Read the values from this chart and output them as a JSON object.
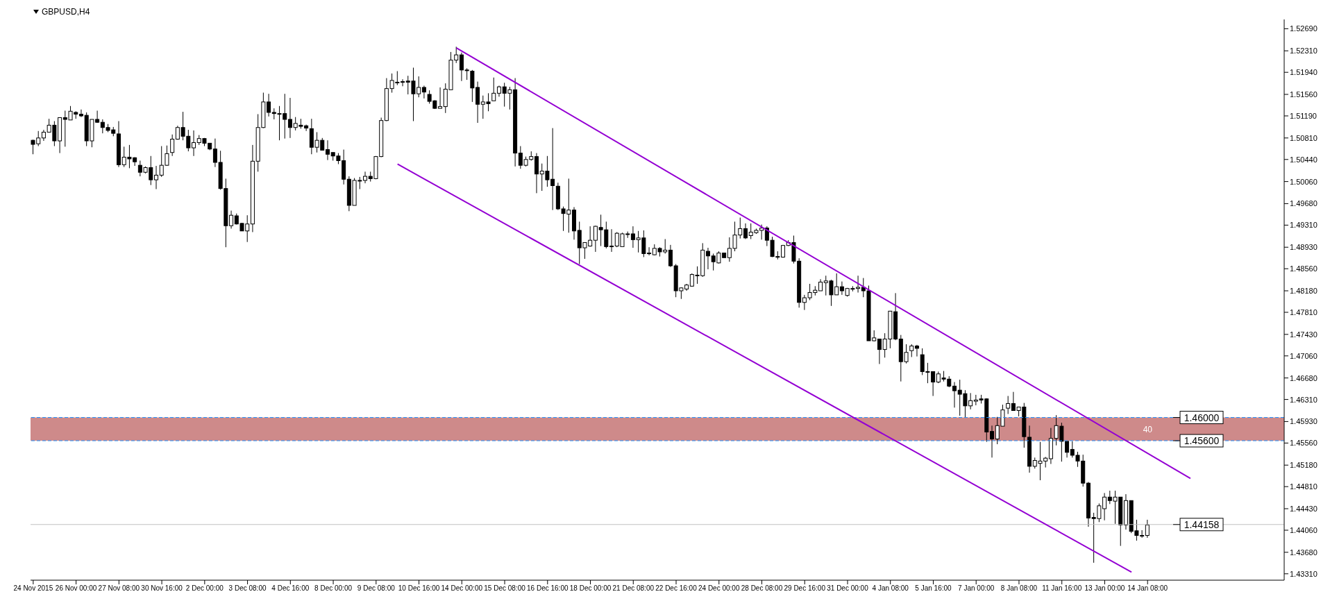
{
  "chart_data": {
    "type": "candlestick",
    "title": "GBPUSD,H4",
    "categories": [
      "24 Nov 2015",
      null,
      null,
      null,
      null,
      null,
      null,
      null,
      "26 Nov 00:00",
      null,
      null,
      null,
      null,
      null,
      null,
      null,
      "27 Nov 08:00",
      null,
      null,
      null,
      null,
      null,
      null,
      null,
      "30 Nov 16:00",
      null,
      null,
      null,
      null,
      null,
      null,
      null,
      "2 Dec 00:00",
      null,
      null,
      null,
      null,
      null,
      null,
      null,
      "3 Dec 08:00",
      null,
      null,
      null,
      null,
      null,
      null,
      null,
      "4 Dec 16:00",
      null,
      null,
      null,
      null,
      null,
      null,
      null,
      "8 Dec 00:00",
      null,
      null,
      null,
      null,
      null,
      null,
      null,
      "9 Dec 08:00",
      null,
      null,
      null,
      null,
      null,
      null,
      null,
      "10 Dec 16:00",
      null,
      null,
      null,
      null,
      null,
      null,
      null,
      "14 Dec 00:00",
      null,
      null,
      null,
      null,
      null,
      null,
      null,
      "15 Dec 08:00",
      null,
      null,
      null,
      null,
      null,
      null,
      null,
      "16 Dec 16:00",
      null,
      null,
      null,
      null,
      null,
      null,
      null,
      "18 Dec 00:00",
      null,
      null,
      null,
      null,
      null,
      null,
      null,
      "21 Dec 08:00",
      null,
      null,
      null,
      null,
      null,
      null,
      null,
      "22 Dec 16:00",
      null,
      null,
      null,
      null,
      null,
      null,
      null,
      "24 Dec 00:00",
      null,
      null,
      null,
      null,
      null,
      null,
      null,
      "28 Dec 08:00",
      null,
      null,
      null,
      null,
      null,
      null,
      null,
      "29 Dec 16:00",
      null,
      null,
      null,
      null,
      null,
      null,
      null,
      "31 Dec 00:00",
      null,
      null,
      null,
      null,
      null,
      null,
      null,
      "4 Jan 08:00",
      null,
      null,
      null,
      null,
      null,
      null,
      null,
      "5 Jan 16:00",
      null,
      null,
      null,
      null,
      null,
      null,
      null,
      "7 Jan 00:00",
      null,
      null,
      null,
      null,
      null,
      null,
      null,
      "8 Jan 08:00",
      null,
      null,
      null,
      null,
      null,
      null,
      null,
      "11 Jan 16:00",
      null,
      null,
      null,
      null,
      null,
      null,
      null,
      "13 Jan 00:00",
      null,
      null,
      null,
      null,
      null,
      null,
      null,
      "14 Jan 08:00",
      null,
      null,
      null,
      null,
      null,
      null,
      null,
      null,
      null,
      null,
      null,
      null,
      null,
      null,
      null,
      null,
      null,
      null,
      null,
      null,
      null,
      null,
      null,
      null,
      null
    ],
    "ohlc": [
      [
        1.5077,
        1.5078,
        1.5053,
        1.507
      ],
      [
        1.5071,
        1.5093,
        1.5067,
        1.5081
      ],
      [
        1.5081,
        1.5095,
        1.5076,
        1.5091
      ],
      [
        1.5091,
        1.5114,
        1.5091,
        1.5103
      ],
      [
        1.5103,
        1.511,
        1.5067,
        1.5076
      ],
      [
        1.5076,
        1.5116,
        1.5055,
        1.5116
      ],
      [
        1.5116,
        1.5128,
        1.5066,
        1.5113
      ],
      [
        1.5112,
        1.5136,
        1.5112,
        1.5127
      ],
      [
        1.5125,
        1.5127,
        1.5114,
        1.5122
      ],
      [
        1.5122,
        1.513,
        1.5117,
        1.5119
      ],
      [
        1.512,
        1.5125,
        1.5067,
        1.5076
      ],
      [
        1.5076,
        1.5113,
        1.5065,
        1.5113
      ],
      [
        1.5113,
        1.5128,
        1.5107,
        1.5108
      ],
      [
        1.5108,
        1.5113,
        1.5089,
        1.5099
      ],
      [
        1.5099,
        1.5105,
        1.5091,
        1.5094
      ],
      [
        1.5095,
        1.51,
        1.5084,
        1.5089
      ],
      [
        1.5088,
        1.511,
        1.5031,
        1.5035
      ],
      [
        1.5035,
        1.5066,
        1.5031,
        1.5048
      ],
      [
        1.5048,
        1.5069,
        1.5029,
        1.5045
      ],
      [
        1.5047,
        1.5048,
        1.5033,
        1.504
      ],
      [
        1.5034,
        1.5042,
        1.5015,
        1.5022
      ],
      [
        1.5022,
        1.5032,
        1.502,
        1.503
      ],
      [
        1.503,
        1.505,
        1.5,
        1.5009
      ],
      [
        1.5009,
        1.5033,
        1.4993,
        1.5017
      ],
      [
        1.5017,
        1.5067,
        1.5014,
        1.5034
      ],
      [
        1.5034,
        1.5068,
        1.5033,
        1.5054
      ],
      [
        1.5056,
        1.5087,
        1.505,
        1.5079
      ],
      [
        1.5079,
        1.5102,
        1.5078,
        1.5099
      ],
      [
        1.5099,
        1.5126,
        1.5077,
        1.5084
      ],
      [
        1.5084,
        1.5095,
        1.5058,
        1.5064
      ],
      [
        1.5064,
        1.5094,
        1.505,
        1.5073
      ],
      [
        1.5073,
        1.5086,
        1.5069,
        1.508
      ],
      [
        1.508,
        1.5081,
        1.5067,
        1.5072
      ],
      [
        1.5072,
        1.5072,
        1.506,
        1.5062
      ],
      [
        1.5062,
        1.508,
        1.5031,
        1.5039
      ],
      [
        1.5039,
        1.5059,
        1.4992,
        1.4994
      ],
      [
        1.4994,
        1.5011,
        1.4893,
        1.493
      ],
      [
        1.493,
        1.4956,
        1.4925,
        1.4948
      ],
      [
        1.4947,
        1.4951,
        1.4932,
        1.4933
      ],
      [
        1.4934,
        1.4935,
        1.4921,
        1.4921
      ],
      [
        1.4921,
        1.4948,
        1.4902,
        1.4933
      ],
      [
        1.4933,
        1.5069,
        1.4919,
        1.5041
      ],
      [
        1.5041,
        1.5122,
        1.5023,
        1.5099
      ],
      [
        1.5099,
        1.5159,
        1.5098,
        1.5143
      ],
      [
        1.5143,
        1.5157,
        1.5118,
        1.5125
      ],
      [
        1.5125,
        1.5132,
        1.5113,
        1.5123
      ],
      [
        1.5123,
        1.5136,
        1.5077,
        1.5123
      ],
      [
        1.5123,
        1.5157,
        1.508,
        1.5113
      ],
      [
        1.5113,
        1.515,
        1.5081,
        1.5099
      ],
      [
        1.5099,
        1.5117,
        1.5094,
        1.5106
      ],
      [
        1.5103,
        1.5114,
        1.5097,
        1.5101
      ],
      [
        1.5102,
        1.5104,
        1.5093,
        1.5098
      ],
      [
        1.5097,
        1.5114,
        1.5053,
        1.5065
      ],
      [
        1.5065,
        1.5091,
        1.5056,
        1.5077
      ],
      [
        1.5077,
        1.5081,
        1.506,
        1.506
      ],
      [
        1.5061,
        1.5077,
        1.5043,
        1.5053
      ],
      [
        1.5056,
        1.5056,
        1.5042,
        1.505
      ],
      [
        1.505,
        1.5055,
        1.5036,
        1.5042
      ],
      [
        1.5042,
        1.5061,
        1.5001,
        1.501
      ],
      [
        1.501,
        1.5015,
        1.4955,
        1.4965
      ],
      [
        1.4965,
        1.5012,
        1.4965,
        1.5008
      ],
      [
        1.5008,
        1.5014,
        1.4993,
        1.5008
      ],
      [
        1.5008,
        1.5023,
        1.5003,
        1.5015
      ],
      [
        1.5015,
        1.5023,
        1.5006,
        1.5011
      ],
      [
        1.5011,
        1.505,
        1.501,
        1.5049
      ],
      [
        1.5049,
        1.5116,
        1.5048,
        1.5111
      ],
      [
        1.5111,
        1.5184,
        1.511,
        1.5166
      ],
      [
        1.5166,
        1.5192,
        1.5159,
        1.518
      ],
      [
        1.5177,
        1.5196,
        1.5172,
        1.5177
      ],
      [
        1.5178,
        1.5182,
        1.517,
        1.5177
      ],
      [
        1.5179,
        1.5188,
        1.5156,
        1.5177
      ],
      [
        1.5179,
        1.5202,
        1.511,
        1.5157
      ],
      [
        1.5157,
        1.5187,
        1.5151,
        1.5168
      ],
      [
        1.5168,
        1.5171,
        1.5149,
        1.516
      ],
      [
        1.5156,
        1.5163,
        1.514,
        1.5144
      ],
      [
        1.5145,
        1.5146,
        1.5131,
        1.5132
      ],
      [
        1.5132,
        1.5168,
        1.5132,
        1.5135
      ],
      [
        1.5135,
        1.5175,
        1.5124,
        1.5165
      ],
      [
        1.5164,
        1.5229,
        1.5164,
        1.5215
      ],
      [
        1.5215,
        1.5238,
        1.521,
        1.5224
      ],
      [
        1.5224,
        1.5228,
        1.5179,
        1.5198
      ],
      [
        1.5198,
        1.5201,
        1.5181,
        1.5197
      ],
      [
        1.5196,
        1.5198,
        1.5143,
        1.5167
      ],
      [
        1.5168,
        1.5178,
        1.5107,
        1.5139
      ],
      [
        1.5139,
        1.5154,
        1.5114,
        1.5143
      ],
      [
        1.5143,
        1.5158,
        1.5127,
        1.514
      ],
      [
        1.5145,
        1.5185,
        1.5145,
        1.5158
      ],
      [
        1.5158,
        1.5171,
        1.5152,
        1.5169
      ],
      [
        1.5169,
        1.5176,
        1.5135,
        1.5158
      ],
      [
        1.5158,
        1.5169,
        1.513,
        1.5164
      ],
      [
        1.5164,
        1.5184,
        1.5032,
        1.5055
      ],
      [
        1.5055,
        1.5067,
        1.5028,
        1.5034
      ],
      [
        1.5034,
        1.5049,
        1.5032,
        1.5044
      ],
      [
        1.5044,
        1.5058,
        1.5042,
        1.5049
      ],
      [
        1.5049,
        1.5055,
        1.4986,
        1.5019
      ],
      [
        1.5019,
        1.5037,
        1.499,
        1.5024
      ],
      [
        1.5024,
        1.505,
        1.4997,
        1.5009
      ],
      [
        1.501,
        1.5098,
        1.4957,
        1.4999
      ],
      [
        1.4998,
        1.5004,
        1.4957,
        1.4959
      ],
      [
        1.4959,
        1.4963,
        1.4921,
        1.4951
      ],
      [
        1.495,
        1.5011,
        1.4918,
        1.4957
      ],
      [
        1.4957,
        1.4962,
        1.4906,
        1.4921
      ],
      [
        1.4922,
        1.4937,
        1.4864,
        1.4892
      ],
      [
        1.4892,
        1.4901,
        1.4873,
        1.4901
      ],
      [
        1.4895,
        1.4929,
        1.4894,
        1.4905
      ],
      [
        1.4905,
        1.493,
        1.4885,
        1.4929
      ],
      [
        1.4927,
        1.4949,
        1.4895,
        1.4923
      ],
      [
        1.4923,
        1.4937,
        1.4891,
        1.4894
      ],
      [
        1.4895,
        1.4924,
        1.4885,
        1.4894
      ],
      [
        1.4895,
        1.4919,
        1.4893,
        1.4917
      ],
      [
        1.4894,
        1.4918,
        1.4894,
        1.4916
      ],
      [
        1.4916,
        1.492,
        1.4909,
        1.4916
      ],
      [
        1.4916,
        1.4929,
        1.4892,
        1.4906
      ],
      [
        1.4906,
        1.4921,
        1.4884,
        1.4909
      ],
      [
        1.4909,
        1.4922,
        1.4876,
        1.4882
      ],
      [
        1.4883,
        1.4893,
        1.4879,
        1.4883
      ],
      [
        1.488,
        1.4898,
        1.4879,
        1.4891
      ],
      [
        1.4891,
        1.4893,
        1.4877,
        1.4885
      ],
      [
        1.4885,
        1.4907,
        1.4882,
        1.4888
      ],
      [
        1.4888,
        1.4897,
        1.4859,
        1.4861
      ],
      [
        1.4861,
        1.4864,
        1.4807,
        1.4818
      ],
      [
        1.4818,
        1.4824,
        1.4804,
        1.4823
      ],
      [
        1.4821,
        1.483,
        1.4818,
        1.4828
      ],
      [
        1.4826,
        1.4848,
        1.4825,
        1.4846
      ],
      [
        1.4845,
        1.486,
        1.483,
        1.4844
      ],
      [
        1.4844,
        1.49,
        1.4842,
        1.4888
      ],
      [
        1.4886,
        1.4892,
        1.4855,
        1.4878
      ],
      [
        1.4878,
        1.4882,
        1.4853,
        1.4868
      ],
      [
        1.4866,
        1.4886,
        1.4865,
        1.4883
      ],
      [
        1.4883,
        1.4883,
        1.4875,
        1.4875
      ],
      [
        1.4875,
        1.491,
        1.4868,
        1.4891
      ],
      [
        1.4891,
        1.4937,
        1.4886,
        1.4914
      ],
      [
        1.4914,
        1.4944,
        1.4908,
        1.4925
      ],
      [
        1.4925,
        1.4934,
        1.4907,
        1.4909
      ],
      [
        1.4913,
        1.4934,
        1.4907,
        1.4919
      ],
      [
        1.4918,
        1.4925,
        1.4916,
        1.4922
      ],
      [
        1.4922,
        1.4932,
        1.4906,
        1.4926
      ],
      [
        1.4926,
        1.4929,
        1.4895,
        1.4905
      ],
      [
        1.4905,
        1.4911,
        1.4876,
        1.4877
      ],
      [
        1.4877,
        1.4886,
        1.4872,
        1.4877
      ],
      [
        1.4876,
        1.4897,
        1.4875,
        1.4896
      ],
      [
        1.4896,
        1.4905,
        1.4895,
        1.4901
      ],
      [
        1.4901,
        1.4913,
        1.4865,
        1.4869
      ],
      [
        1.4869,
        1.4874,
        1.4789,
        1.4798
      ],
      [
        1.4798,
        1.4811,
        1.4785,
        1.4806
      ],
      [
        1.4806,
        1.483,
        1.4802,
        1.4815
      ],
      [
        1.4815,
        1.4826,
        1.481,
        1.4819
      ],
      [
        1.4818,
        1.4838,
        1.4818,
        1.4833
      ],
      [
        1.4832,
        1.4844,
        1.481,
        1.4835
      ],
      [
        1.4835,
        1.4837,
        1.4792,
        1.4811
      ],
      [
        1.4811,
        1.4848,
        1.4811,
        1.4825
      ],
      [
        1.4825,
        1.4834,
        1.4811,
        1.4818
      ],
      [
        1.481,
        1.4823,
        1.4808,
        1.4822
      ],
      [
        1.4822,
        1.4826,
        1.4817,
        1.4822
      ],
      [
        1.4822,
        1.4844,
        1.4815,
        1.4824
      ],
      [
        1.4824,
        1.484,
        1.4807,
        1.4818
      ],
      [
        1.4818,
        1.4827,
        1.4732,
        1.4732
      ],
      [
        1.4732,
        1.475,
        1.4731,
        1.4737
      ],
      [
        1.4735,
        1.4735,
        1.4692,
        1.4717
      ],
      [
        1.4717,
        1.4745,
        1.4703,
        1.4735
      ],
      [
        1.4735,
        1.4783,
        1.4719,
        1.4783
      ],
      [
        1.4782,
        1.4814,
        1.4733,
        1.4735
      ],
      [
        1.4735,
        1.4742,
        1.4662,
        1.4696
      ],
      [
        1.4696,
        1.4726,
        1.4693,
        1.4712
      ],
      [
        1.4715,
        1.4726,
        1.4704,
        1.4723
      ],
      [
        1.4723,
        1.4725,
        1.4705,
        1.4719
      ],
      [
        1.4708,
        1.4719,
        1.4673,
        1.4679
      ],
      [
        1.4679,
        1.4694,
        1.4659,
        1.4678
      ],
      [
        1.4679,
        1.4679,
        1.4637,
        1.4661
      ],
      [
        1.4661,
        1.4679,
        1.4659,
        1.4675
      ],
      [
        1.4668,
        1.468,
        1.4662,
        1.4666
      ],
      [
        1.4666,
        1.4671,
        1.4652,
        1.4654
      ],
      [
        1.4654,
        1.4661,
        1.4617,
        1.4646
      ],
      [
        1.4647,
        1.4665,
        1.4603,
        1.464
      ],
      [
        1.4641,
        1.4647,
        1.46,
        1.462
      ],
      [
        1.462,
        1.4642,
        1.4614,
        1.4629
      ],
      [
        1.4628,
        1.4639,
        1.4621,
        1.463
      ],
      [
        1.4632,
        1.4639,
        1.4624,
        1.463
      ],
      [
        1.4632,
        1.4633,
        1.4558,
        1.4575
      ],
      [
        1.4576,
        1.4586,
        1.4531,
        1.4563
      ],
      [
        1.4563,
        1.4601,
        1.4554,
        1.4586
      ],
      [
        1.4585,
        1.4622,
        1.4585,
        1.4613
      ],
      [
        1.4616,
        1.4637,
        1.4606,
        1.4624
      ],
      [
        1.4624,
        1.4644,
        1.4612,
        1.4612
      ],
      [
        1.4612,
        1.4618,
        1.4602,
        1.4618
      ],
      [
        1.4618,
        1.4625,
        1.4548,
        1.4567
      ],
      [
        1.4566,
        1.4586,
        1.4505,
        1.4516
      ],
      [
        1.4516,
        1.4531,
        1.4512,
        1.4526
      ],
      [
        1.4521,
        1.4558,
        1.4492,
        1.4525
      ],
      [
        1.4525,
        1.4532,
        1.4514,
        1.453
      ],
      [
        1.4529,
        1.4582,
        1.452,
        1.4564
      ],
      [
        1.4564,
        1.4604,
        1.4552,
        1.4586
      ],
      [
        1.4585,
        1.4591,
        1.4524,
        1.4559
      ],
      [
        1.4559,
        1.4559,
        1.4531,
        1.454
      ],
      [
        1.4545,
        1.4559,
        1.4531,
        1.4535
      ],
      [
        1.4535,
        1.4541,
        1.4515,
        1.4525
      ],
      [
        1.4525,
        1.4536,
        1.4481,
        1.4487
      ],
      [
        1.4487,
        1.4489,
        1.4412,
        1.4427
      ],
      [
        1.4428,
        1.4436,
        1.435,
        1.4426
      ],
      [
        1.4426,
        1.4452,
        1.442,
        1.4448
      ],
      [
        1.4443,
        1.447,
        1.4423,
        1.4463
      ],
      [
        1.4463,
        1.4474,
        1.4451,
        1.4457
      ],
      [
        1.4456,
        1.4474,
        1.4417,
        1.4463
      ],
      [
        1.4463,
        1.4463,
        1.4379,
        1.4415
      ],
      [
        1.4415,
        1.4468,
        1.4407,
        1.4457
      ],
      [
        1.4457,
        1.4457,
        1.4401,
        1.4404
      ],
      [
        1.4405,
        1.4424,
        1.4388,
        1.4397
      ],
      [
        1.4397,
        1.4406,
        1.4393,
        1.4397
      ],
      [
        1.4397,
        1.4424,
        1.4393,
        1.4415
      ],
      null,
      null,
      null,
      null,
      null,
      null,
      null,
      null,
      null,
      null,
      null,
      null,
      null,
      null,
      null,
      null,
      null,
      null,
      null,
      null,
      null,
      null,
      null,
      null,
      null
    ],
    "series": [
      {
        "type": "line",
        "color": "#9400d3",
        "values": [
          null,
          null,
          null,
          null,
          null,
          null,
          null,
          null,
          null,
          null,
          null,
          null,
          null,
          null,
          null,
          null,
          null,
          null,
          null,
          null,
          null,
          null,
          null,
          null,
          null,
          null,
          null,
          null,
          null,
          null,
          null,
          null,
          null,
          null,
          null,
          null,
          null,
          null,
          null,
          null,
          null,
          null,
          null,
          null,
          null,
          null,
          null,
          null,
          null,
          null,
          null,
          null,
          null,
          null,
          null,
          null,
          null,
          null,
          null,
          null,
          null,
          null,
          null,
          null,
          null,
          null,
          null,
          null,
          null,
          null,
          null,
          null,
          null,
          null,
          null,
          null,
          null,
          null,
          null,
          1.5236,
          null,
          null,
          null,
          null,
          null,
          null,
          null,
          null,
          null,
          null,
          null,
          null,
          null,
          null,
          null,
          null,
          null,
          null,
          null,
          null,
          null,
          null,
          null,
          null,
          null,
          null,
          null,
          null,
          null,
          null,
          null,
          null,
          null,
          null,
          null,
          null,
          null,
          null,
          null,
          null,
          null,
          null,
          null,
          null,
          null,
          null,
          null,
          null,
          null,
          null,
          null,
          null,
          null,
          null,
          null,
          null,
          null,
          null,
          null,
          null,
          null,
          null,
          null,
          null,
          null,
          null,
          null,
          null,
          null,
          null,
          null,
          null,
          null,
          null,
          null,
          null,
          null,
          null,
          null,
          null,
          null,
          null,
          null,
          null,
          null,
          null,
          null,
          null,
          null,
          null,
          null,
          null,
          null,
          null,
          null,
          null,
          null,
          null,
          null,
          null,
          null,
          null,
          null,
          null,
          null,
          null,
          null,
          null,
          null,
          null,
          null,
          null,
          null,
          null,
          null,
          null,
          null,
          null,
          null,
          null,
          null,
          null,
          null,
          null,
          null,
          null,
          null,
          null,
          null,
          null,
          null,
          null,
          null,
          null,
          null,
          null,
          1.4495,
          null,
          null,
          null,
          null,
          null,
          null,
          null,
          null,
          null,
          null,
          null,
          null,
          null,
          null,
          null,
          null,
          null
        ]
      },
      {
        "type": "line",
        "color": "#9400d3",
        "values": [
          null,
          null,
          null,
          null,
          null,
          null,
          null,
          null,
          null,
          null,
          null,
          null,
          null,
          null,
          null,
          null,
          null,
          null,
          null,
          null,
          null,
          null,
          null,
          null,
          null,
          null,
          null,
          null,
          null,
          null,
          null,
          null,
          null,
          null,
          null,
          null,
          null,
          null,
          null,
          null,
          null,
          null,
          null,
          null,
          null,
          null,
          null,
          null,
          null,
          null,
          null,
          null,
          null,
          null,
          null,
          null,
          null,
          null,
          null,
          null,
          null,
          null,
          null,
          null,
          null,
          null,
          null,
          null,
          1.5036,
          null,
          null,
          null,
          null,
          null,
          null,
          null,
          null,
          null,
          null,
          null,
          null,
          null,
          null,
          null,
          null,
          null,
          null,
          null,
          null,
          null,
          null,
          null,
          null,
          null,
          null,
          null,
          null,
          null,
          null,
          null,
          null,
          null,
          null,
          null,
          null,
          null,
          null,
          null,
          null,
          null,
          null,
          null,
          null,
          null,
          null,
          null,
          null,
          null,
          null,
          null,
          null,
          null,
          null,
          null,
          null,
          null,
          null,
          null,
          null,
          null,
          null,
          null,
          null,
          null,
          null,
          null,
          null,
          null,
          null,
          null,
          null,
          null,
          null,
          null,
          null,
          null,
          null,
          null,
          null,
          null,
          null,
          null,
          null,
          null,
          null,
          null,
          null,
          null,
          null,
          null,
          null,
          null,
          null,
          null,
          null,
          null,
          null,
          null,
          null,
          null,
          null,
          null,
          null,
          null,
          null,
          null,
          null,
          null,
          null,
          null,
          null,
          null,
          null,
          null,
          null,
          null,
          null,
          null,
          null,
          null,
          null,
          null,
          null,
          null,
          null,
          null,
          null,
          null,
          null,
          null,
          null,
          null,
          null,
          null,
          null,
          1.4334,
          null,
          null,
          null,
          null,
          null,
          null,
          null,
          null,
          null,
          null,
          null,
          null,
          null,
          null,
          null,
          null,
          null,
          null,
          null,
          null,
          null,
          null,
          null,
          null,
          null,
          null,
          null,
          null
        ]
      }
    ],
    "ylim": [
      1.432,
      1.5285
    ],
    "yticks": [
      {
        "value": 1.4331,
        "label": "1.43310"
      },
      {
        "value": 1.4368,
        "label": "1.43680"
      },
      {
        "value": 1.4406,
        "label": "1.44060"
      },
      {
        "value": 1.4443,
        "label": "1.44430"
      },
      {
        "value": 1.4481,
        "label": "1.44810"
      },
      {
        "value": 1.4518,
        "label": "1.45180"
      },
      {
        "value": 1.4556,
        "label": "1.45560"
      },
      {
        "value": 1.4593,
        "label": "1.45930"
      },
      {
        "value": 1.4631,
        "label": "1.46310"
      },
      {
        "value": 1.4668,
        "label": "1.46680"
      },
      {
        "value": 1.4706,
        "label": "1.47060"
      },
      {
        "value": 1.4743,
        "label": "1.47430"
      },
      {
        "value": 1.4781,
        "label": "1.47810"
      },
      {
        "value": 1.4818,
        "label": "1.48180"
      },
      {
        "value": 1.4856,
        "label": "1.48560"
      },
      {
        "value": 1.4893,
        "label": "1.48930"
      },
      {
        "value": 1.4931,
        "label": "1.49310"
      },
      {
        "value": 1.4968,
        "label": "1.49680"
      },
      {
        "value": 1.5006,
        "label": "1.50060"
      },
      {
        "value": 1.5044,
        "label": "1.50440"
      },
      {
        "value": 1.5081,
        "label": "1.50810"
      },
      {
        "value": 1.5119,
        "label": "1.51190"
      },
      {
        "value": 1.5156,
        "label": "1.51560"
      },
      {
        "value": 1.5194,
        "label": "1.51940"
      },
      {
        "value": 1.5231,
        "label": "1.52310"
      },
      {
        "value": 1.5269,
        "label": "1.52690"
      }
    ],
    "ref_lines": [
      {
        "axis": "y",
        "value": 1.46,
        "label": "1.46000",
        "color": "#1e90ff",
        "line_style": "dashed"
      },
      {
        "axis": "y",
        "value": 1.456,
        "label": "1.45600",
        "color": "#1e90ff",
        "line_style": "dashed"
      },
      {
        "axis": "y",
        "value": 1.44158,
        "label": "1.44158",
        "color": "#c0c0c0",
        "line_style": "solid"
      }
    ],
    "bands": [
      {
        "axis": "y",
        "from": 1.456,
        "to": 1.46,
        "label": "40",
        "color": "#a52a2a"
      }
    ]
  }
}
